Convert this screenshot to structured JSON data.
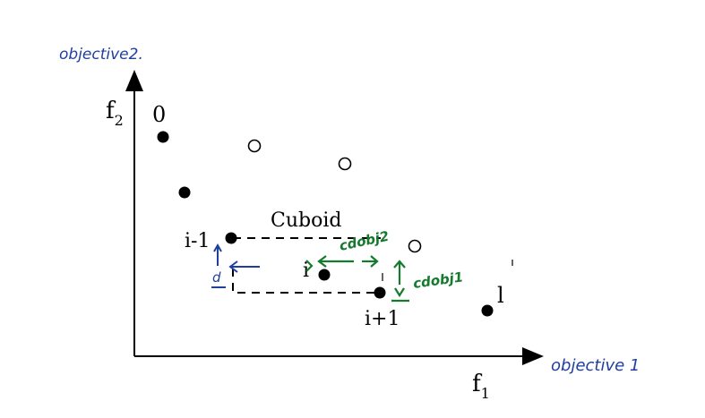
{
  "axes": {
    "y_label": "f",
    "y_label_sub": "2",
    "x_label": "f",
    "x_label_sub": "1"
  },
  "annotations": {
    "handwritten_y": "objective2.",
    "handwritten_x": "objective 1",
    "cuboid_label": "Cuboid",
    "d_obj2": "cdobj2",
    "d_obj1": "cdobj1",
    "blue_d": "d"
  },
  "points": {
    "label_0": "0",
    "label_i_minus_1": "i-1",
    "label_i": "i",
    "label_i_plus_1": "i+1",
    "label_l": "l"
  },
  "colors": {
    "ink": "#000000",
    "blue": "#1f3f9f",
    "green": "#157a2e"
  }
}
